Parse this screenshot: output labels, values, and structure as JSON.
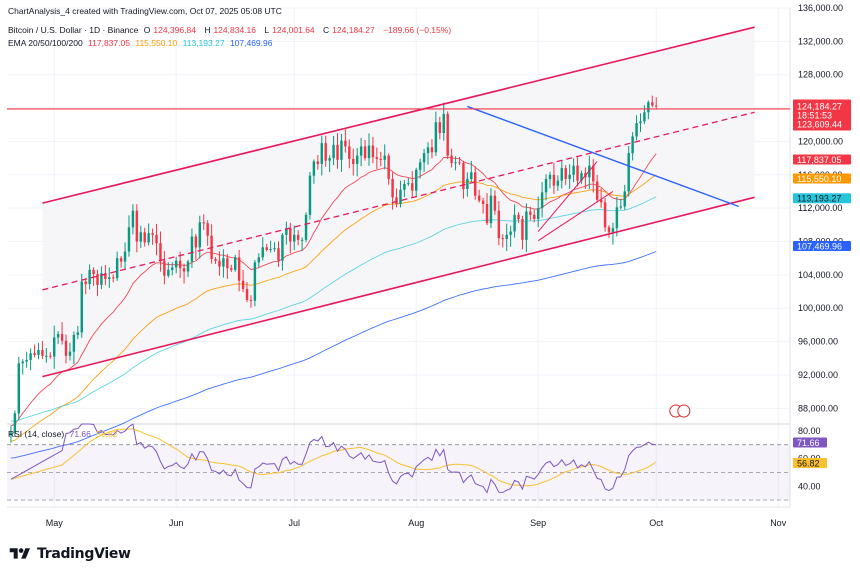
{
  "header": {
    "creator": "ChartAnalysis_4 created with TradingView.com, Oct 07, 2025 05:08 UTC",
    "symbol": "Bitcoin / U.S. Dollar · 1D · Binance",
    "open_label": "O",
    "open": "124,396.84",
    "high_label": "H",
    "high": "124,834.16",
    "low_label": "L",
    "low": "124,001.64",
    "close_label": "C",
    "close": "124,184.27",
    "change": "−189.66 (−0.15%)",
    "ema_label": "EMA 20/50/100/200",
    "ema20": "117,837.05",
    "ema50": "115,550.10",
    "ema100": "113,193.27",
    "ema200": "107,469.96"
  },
  "colors": {
    "up": "#089981",
    "down": "#f23645",
    "channel": "#e8185c",
    "ema20": "#f23645",
    "ema50": "#ff9800",
    "ema100": "#4dd0e1",
    "ema200": "#2962ff",
    "rsi": "#7e57c2",
    "rsi_ma": "#fbc02d",
    "trendline": "#2962ff",
    "price_line": "#f23645"
  },
  "watermark": "TradingView",
  "chart_data": [
    {
      "type": "candlestick",
      "title": "Bitcoin / U.S. Dollar · 1D · Binance",
      "x_range": [
        "2025-04-19",
        "2025-11-04"
      ],
      "y_range": [
        86000,
        136000
      ],
      "y_ticks": [
        "136,000.00",
        "132,000.00",
        "128,000.00",
        "124,000.00",
        "120,000.00",
        "116,000.00",
        "112,000.00",
        "108,000.00",
        "104,000.00",
        "100,000.00",
        "96,000.00",
        "92,000.00",
        "88,000.00"
      ],
      "x_ticks": [
        {
          "date": "2025-05-01",
          "label": "May"
        },
        {
          "date": "2025-06-01",
          "label": "Jun"
        },
        {
          "date": "2025-07-01",
          "label": "Jul"
        },
        {
          "date": "2025-08-01",
          "label": "Aug"
        },
        {
          "date": "2025-09-01",
          "label": "Sep"
        },
        {
          "date": "2025-10-01",
          "label": "Oct"
        },
        {
          "date": "2025-11-01",
          "label": "Nov"
        }
      ],
      "start_date": "2025-04-20",
      "close_series": [
        85100,
        87400,
        93400,
        93600,
        93800,
        94600,
        94400,
        95000,
        94300,
        94300,
        94200,
        96500,
        96900,
        96100,
        94300,
        94800,
        96800,
        97100,
        103200,
        102900,
        104600,
        104100,
        102800,
        104200,
        103500,
        103700,
        103600,
        106000,
        105600,
        106800,
        109700,
        111700,
        108000,
        109100,
        107900,
        109000,
        108800,
        107800,
        105700,
        103900,
        104600,
        104900,
        105700,
        104800,
        104400,
        105600,
        108600,
        107300,
        110300,
        110200,
        108700,
        105900,
        105700,
        105000,
        106000,
        104800,
        104600,
        106100,
        103300,
        102300,
        101000,
        100900,
        105500,
        106100,
        107300,
        107000,
        107100,
        107200,
        105700,
        108800,
        109600,
        108000,
        108800,
        108200,
        108200,
        111200,
        115900,
        117600,
        117300,
        119800,
        117700,
        118000,
        119600,
        117800,
        120100,
        119400,
        117900,
        117300,
        118300,
        119400,
        118000,
        119500,
        118100,
        117900,
        117800,
        118300,
        115500,
        113300,
        112500,
        114200,
        114900,
        115000,
        114100,
        116600,
        117500,
        118600,
        119300,
        118700,
        122300,
        121000,
        123300,
        118300,
        117400,
        117500,
        117400,
        114300,
        115500,
        116300,
        113500,
        112900,
        112500,
        110200,
        113500,
        111700,
        108400,
        108300,
        108800,
        109200,
        111200,
        110700,
        108200,
        111600,
        111200,
        110700,
        112000,
        113900,
        115500,
        116000,
        114700,
        115300,
        116800,
        115500,
        116000,
        117100,
        115300,
        116200,
        115700,
        117100,
        115200,
        113000,
        112700,
        109700,
        109100,
        109600,
        112100,
        112200,
        114000,
        118600,
        120600,
        122200,
        122400,
        123500,
        124700,
        124300,
        124200
      ],
      "price_labels": {
        "last": "124,184.27",
        "countdown": "18:51:53",
        "prev": "123,609.44"
      },
      "series": [
        {
          "name": "EMA 20",
          "value": "117,837.05"
        },
        {
          "name": "EMA 50",
          "value": "115,550.10"
        },
        {
          "name": "EMA 100",
          "value": "113,193.27"
        },
        {
          "name": "EMA 200",
          "value": "107,469.96"
        }
      ],
      "drawings": {
        "channel_upper": [
          [
            "2025-04-28",
            112600
          ],
          [
            "2025-10-26",
            133700
          ]
        ],
        "channel_lower": [
          [
            "2025-04-28",
            91800
          ],
          [
            "2025-10-26",
            113300
          ]
        ],
        "channel_mid": [
          [
            "2025-04-28",
            102200
          ],
          [
            "2025-10-26",
            123500
          ]
        ],
        "horizontal_line": 123900,
        "descending_trendline": [
          [
            "2025-08-14",
            124200
          ],
          [
            "2025-10-22",
            112200
          ]
        ],
        "wedge_upper": [
          [
            "2025-09-01",
            109200
          ],
          [
            "2025-09-16",
            117600
          ]
        ],
        "wedge_lower": [
          [
            "2025-09-01",
            108100
          ],
          [
            "2025-09-20",
            114000
          ]
        ]
      }
    },
    {
      "type": "line",
      "title": "RSI (14, close)",
      "rsi_value": "71.66",
      "rsi_ma_value": "56.82",
      "y_range": [
        25,
        85
      ],
      "y_ticks": [
        "80.00",
        "60.00",
        "40.00"
      ],
      "levels": [
        70,
        50,
        30
      ],
      "series": [
        {
          "name": "RSI",
          "value": "71.66"
        },
        {
          "name": "RSI-based MA",
          "value": "56.82"
        }
      ]
    }
  ]
}
